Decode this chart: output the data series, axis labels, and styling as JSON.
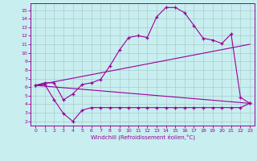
{
  "xlabel": "Windchill (Refroidissement éolien,°C)",
  "bg_color": "#c8eef0",
  "line_color": "#990099",
  "grid_color": "#aacccc",
  "xlim": [
    -0.5,
    23.5
  ],
  "ylim": [
    1.5,
    15.8
  ],
  "xticks": [
    0,
    1,
    2,
    3,
    4,
    5,
    6,
    7,
    8,
    9,
    10,
    11,
    12,
    13,
    14,
    15,
    16,
    17,
    18,
    19,
    20,
    21,
    22,
    23
  ],
  "yticks": [
    2,
    3,
    4,
    5,
    6,
    7,
    8,
    9,
    10,
    11,
    12,
    13,
    14,
    15
  ],
  "line1_x": [
    0,
    1,
    2,
    3,
    4,
    5,
    6,
    7,
    8,
    9,
    10,
    11,
    12,
    13,
    14,
    15,
    16,
    17,
    18,
    19,
    20,
    21,
    22,
    23
  ],
  "line1_y": [
    6.2,
    6.5,
    6.5,
    4.5,
    5.2,
    6.3,
    6.5,
    6.9,
    8.5,
    10.3,
    11.8,
    12.0,
    11.8,
    14.2,
    15.3,
    15.3,
    14.7,
    13.2,
    11.7,
    11.5,
    11.1,
    12.2,
    4.8,
    4.1
  ],
  "line2_x": [
    0,
    1,
    2,
    3,
    4,
    5,
    6,
    7,
    8,
    9,
    10,
    11,
    12,
    13,
    14,
    15,
    16,
    17,
    18,
    19,
    20,
    21,
    22,
    23
  ],
  "line2_y": [
    6.2,
    6.3,
    4.5,
    2.9,
    2.0,
    3.3,
    3.6,
    3.6,
    3.6,
    3.6,
    3.6,
    3.6,
    3.6,
    3.6,
    3.6,
    3.6,
    3.6,
    3.6,
    3.6,
    3.6,
    3.6,
    3.6,
    3.6,
    4.1
  ],
  "line3_x": [
    0,
    23
  ],
  "line3_y": [
    6.2,
    11.0
  ],
  "line4_x": [
    0,
    23
  ],
  "line4_y": [
    6.2,
    4.1
  ]
}
